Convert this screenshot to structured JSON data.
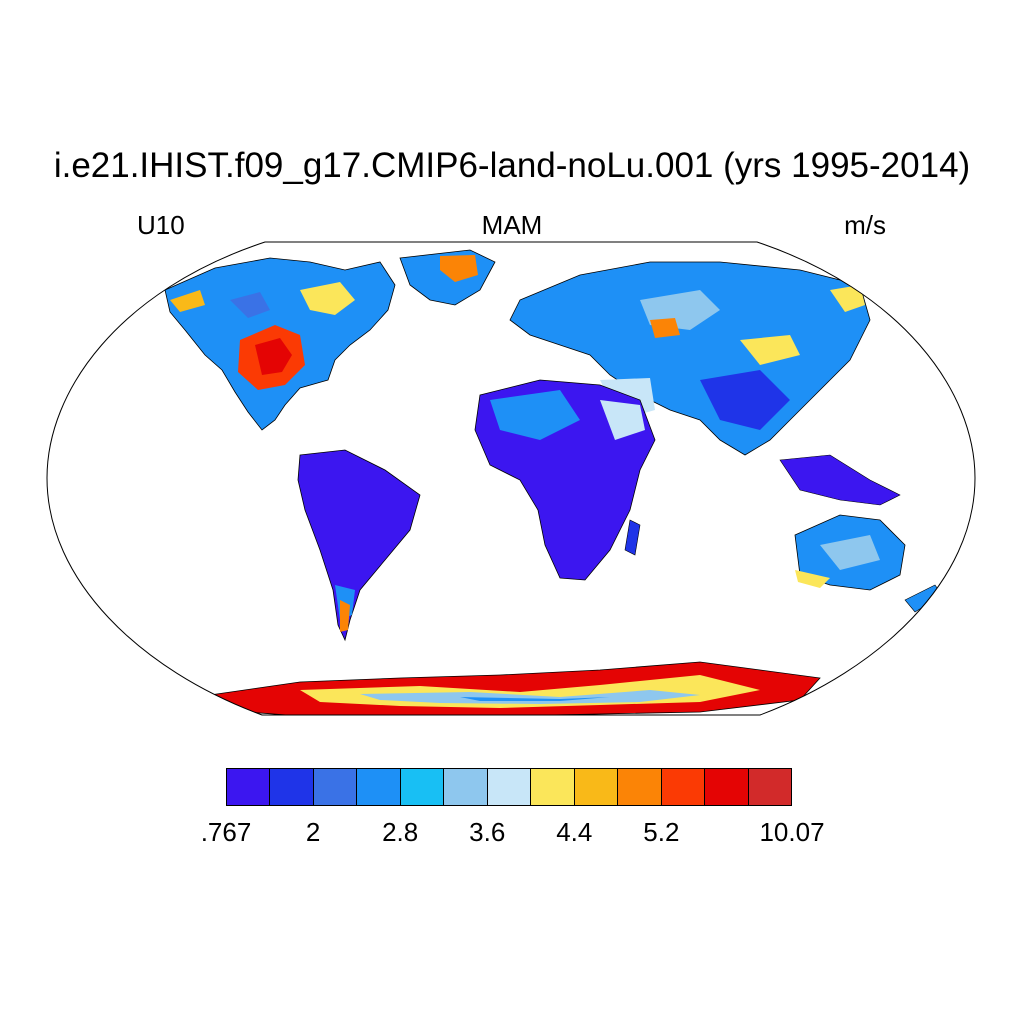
{
  "title": "i.e21.IHIST.f09_g17.CMIP6-land-noLu.001 (yrs 1995-2014)",
  "left_label": "U10",
  "center_label": "MAM",
  "right_label": "m/s",
  "colorbar": {
    "colors": [
      "#3c16f0",
      "#1f34e8",
      "#3a72e6",
      "#1e90f6",
      "#18bff4",
      "#8ec7ee",
      "#c8e6f8",
      "#fbe65a",
      "#f9b918",
      "#fb8406",
      "#fb3a04",
      "#e40404",
      "#d22a2a"
    ],
    "tick_labels": [
      ".767",
      "2",
      "2.8",
      "3.6",
      "4.4",
      "5.2",
      "10.07"
    ]
  },
  "map": {
    "projection": "robinson",
    "variable": "U10",
    "season": "MAM",
    "units": "m/s"
  }
}
